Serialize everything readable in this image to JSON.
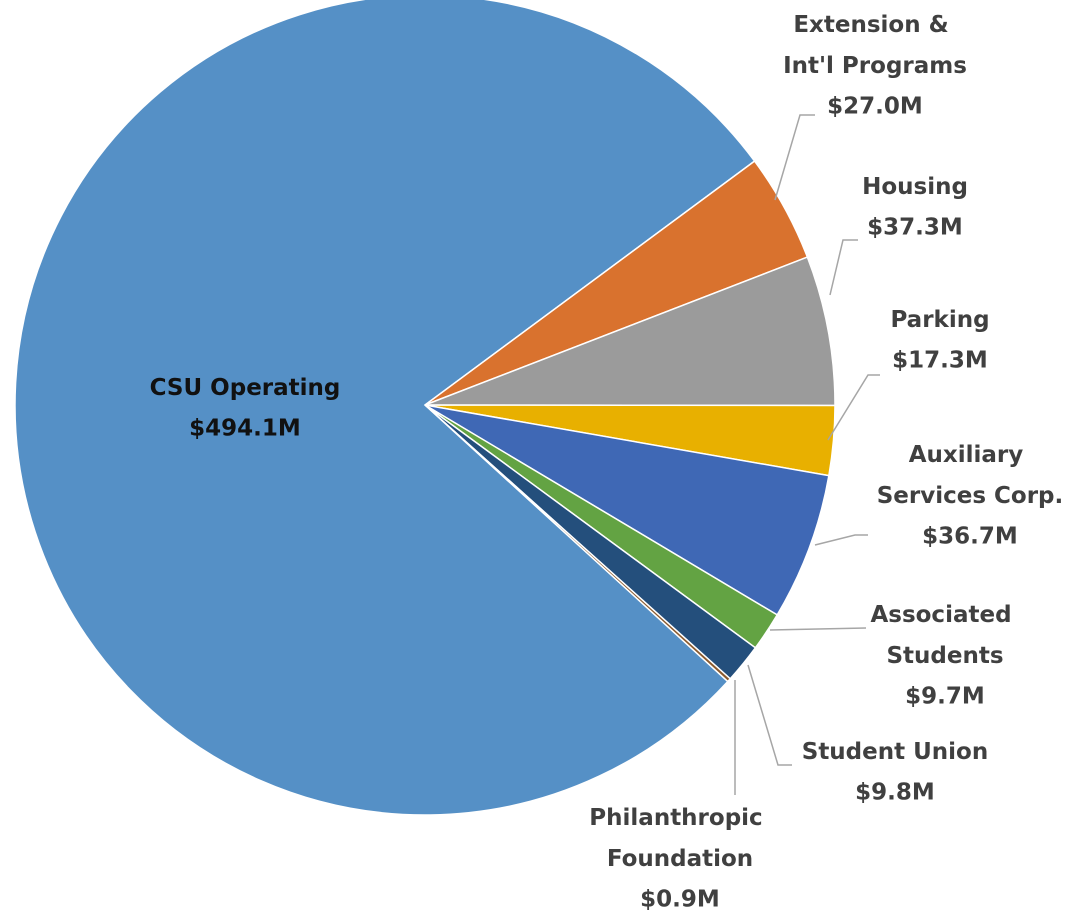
{
  "chart_data": {
    "type": "pie",
    "categories": [
      "CSU Operating",
      "Extension & Int'l Programs",
      "Housing",
      "Parking",
      "Auxiliary Services Corp.",
      "Associated Students",
      "Student Union",
      "Philanthropic Foundation"
    ],
    "values": [
      494.1,
      27.0,
      37.3,
      17.3,
      36.7,
      9.7,
      9.8,
      0.9
    ],
    "value_labels": [
      "$494.1M",
      "$27.0M",
      "$37.3M",
      "$17.3M",
      "$36.7M",
      "$9.7M",
      "$9.8M",
      "$0.9M"
    ],
    "colors": [
      "#5590c6",
      "#d9722e",
      "#9b9b9b",
      "#e8b000",
      "#3f68b5",
      "#63a343",
      "#244f7c",
      "#8a5a2e"
    ]
  }
}
